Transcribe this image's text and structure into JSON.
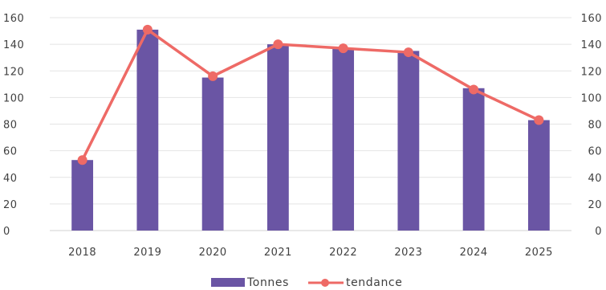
{
  "chart_data": {
    "type": "bar",
    "categories": [
      "2018",
      "2019",
      "2020",
      "2021",
      "2022",
      "2023",
      "2024",
      "2025"
    ],
    "series": [
      {
        "name": "Tonnes",
        "type": "bar",
        "color": "#6A55A4",
        "values": [
          53,
          151,
          115,
          140,
          137,
          135,
          107,
          83
        ]
      },
      {
        "name": "tendance",
        "type": "line",
        "color": "#EE6A66",
        "values": [
          53,
          151,
          116,
          140,
          137,
          134,
          106,
          83
        ]
      }
    ],
    "y_ticks": [
      "0",
      "20",
      "40",
      "60",
      "80",
      "100",
      "120",
      "140",
      "160"
    ],
    "y2_ticks": [
      "0",
      "20",
      "40",
      "60",
      "80",
      "100",
      "120",
      "140",
      "160"
    ],
    "ylim": [
      0,
      160
    ],
    "y2lim": [
      0,
      160
    ],
    "grid": true,
    "legend_position": "bottom"
  }
}
